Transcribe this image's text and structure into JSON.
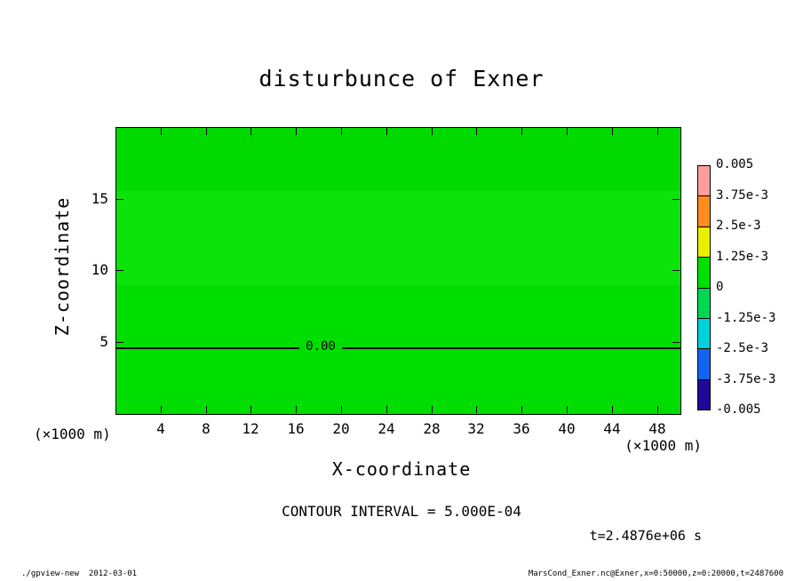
{
  "title": "disturbunce of Exner",
  "axes": {
    "x_label": "X-coordinate",
    "z_label": "Z-coordinate",
    "x_unit_left": "(×1000 m)",
    "x_unit_right": "(×1000 m)"
  },
  "contour_label": "0.00",
  "annotations": {
    "contour_interval": "CONTOUR INTERVAL = 5.000E-04",
    "time": "t=2.4876e+06 s"
  },
  "footer": {
    "left": "./gpview-new  2012-03-01",
    "right": "MarsCond_Exner.nc@Exner,x=0:50000,z=0:20000,t=2487600"
  },
  "chart_data": {
    "type": "heatmap",
    "title": "disturbunce of Exner",
    "xlabel": "X-coordinate",
    "ylabel": "Z-coordinate",
    "axis_units": "×1000 m",
    "xlim": [
      0,
      50
    ],
    "ylim": [
      0,
      20
    ],
    "x_ticks": [
      4,
      8,
      12,
      16,
      20,
      24,
      28,
      32,
      36,
      40,
      44,
      48
    ],
    "y_ticks": [
      5,
      10,
      15
    ],
    "grid": false,
    "legend_position": "colorbar-right",
    "contour_interval": "5.000E-04",
    "time": "t=2.4876e+06 s",
    "field_summary": "Exner function disturbance is approximately 0 over the whole domain; a single 0.00 contour line runs horizontally near z = 4.6 (×1000 m)",
    "zero_contour": {
      "z": 4.6,
      "label": "0.00"
    },
    "plot_bands": [
      {
        "z_from": 15.6,
        "z_to": 20.0,
        "color": "#00da00"
      },
      {
        "z_from": 9.0,
        "z_to": 15.6,
        "color": "#0be30b"
      },
      {
        "z_from": 0.0,
        "z_to": 9.0,
        "color": "#00dd00"
      }
    ],
    "colorbar": {
      "tick_labels": [
        "0.005",
        "3.75e-3",
        "2.5e-3",
        "1.25e-3",
        "0",
        "-1.25e-3",
        "-2.5e-3",
        "-3.75e-3",
        "-0.005"
      ],
      "segment_colors": [
        "#ff9c9c",
        "#ff8c1e",
        "#e6f000",
        "#00e000",
        "#00d852",
        "#00d2dc",
        "#1464f0",
        "#1e0a96"
      ]
    }
  }
}
